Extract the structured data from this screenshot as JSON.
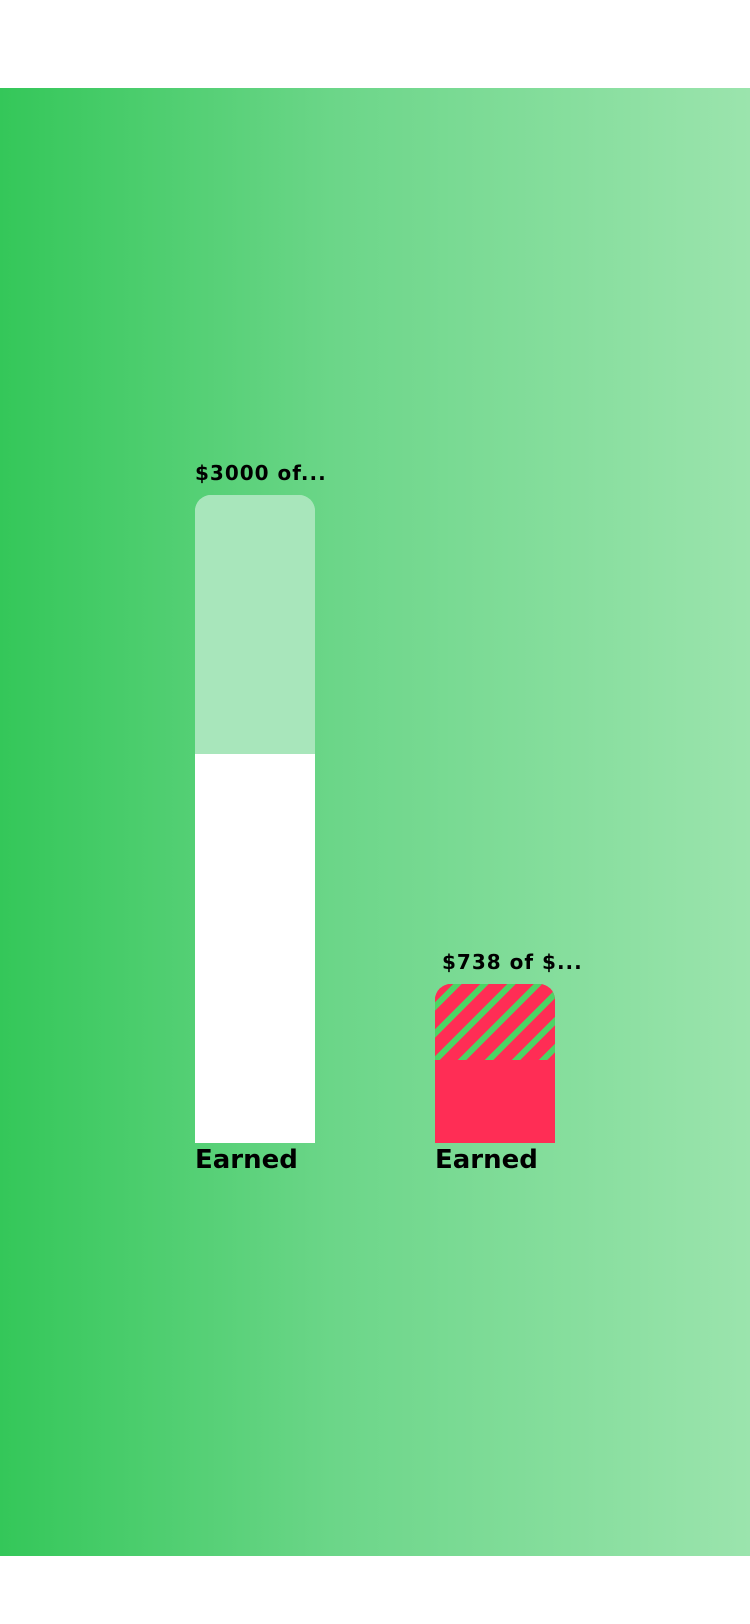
{
  "colors": {
    "gradient_start": "#34c759",
    "gradient_end": "#9be4ad",
    "remaining": "#a8e6bb",
    "earned": "#ffffff",
    "accent_red": "#ff2d55",
    "hatch_stripe": "#4cd464"
  },
  "chart_data": {
    "type": "bar",
    "categories": [
      "Earned",
      "Earned"
    ],
    "ylim": [
      0,
      3000
    ],
    "bars": [
      {
        "label": "$3000 of...",
        "caption": "Earned",
        "total": 3000,
        "earned_fraction": 0.6,
        "earned_color": "#ffffff",
        "remaining_color": "#a8e6bb",
        "remaining_pattern": "solid"
      },
      {
        "label": "$738 of $...",
        "caption": "Earned",
        "total": 738,
        "earned_fraction": 0.52,
        "earned_color": "#ff2d55",
        "remaining_color": "#ff2d55",
        "remaining_pattern": "hatched"
      }
    ]
  }
}
